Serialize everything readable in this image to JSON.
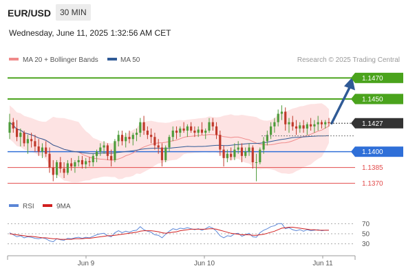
{
  "header": {
    "symbol": "EUR/USD",
    "timeframe": "30 MIN",
    "datetime": "Wednesday, June 11, 2025 1:32:56 AM CET"
  },
  "legend": {
    "ma20": "MA 20 + Bollinger Bands",
    "ma50": "MA 50",
    "credit": "Research © 2025 Trading Central"
  },
  "rsi_legend": {
    "rsi": "RSI",
    "ma": "9MA"
  },
  "colors": {
    "green_line": "#4aa31c",
    "blue_line": "#2f6fd8",
    "red_line": "#e24a4a",
    "ma20": "#f08a8a",
    "ma50": "#2f5a96",
    "band_fill": "#fde0e0",
    "bull_candle": "#4d9c3a",
    "bear_candle": "#c0392b",
    "arrow": "#2f5a96",
    "current_box": "#333333"
  },
  "chart_data": [
    {
      "type": "candlestick",
      "timeframe": "30 MIN",
      "ylim": [
        1.136,
        1.148
      ],
      "x_tick_labels": [
        "Jun 9",
        "Jun 10",
        "Jun 11"
      ],
      "current_price": 1.1427,
      "levels": [
        {
          "value": 1.147,
          "label": "1.1470",
          "kind": "resistance",
          "color": "#4aa31c"
        },
        {
          "value": 1.145,
          "label": "1.1450",
          "kind": "resistance",
          "color": "#4aa31c"
        },
        {
          "value": 1.14,
          "label": "1.1400",
          "kind": "pivot",
          "color": "#2f6fd8"
        },
        {
          "value": 1.1385,
          "label": "1.1385",
          "kind": "support",
          "color": "#e24a4a"
        },
        {
          "value": 1.137,
          "label": "1.1370",
          "kind": "support",
          "color": "#e24a4a"
        }
      ],
      "arrow_target": 1.147,
      "ohlc": [
        [
          1.1418,
          1.1436,
          1.1412,
          1.1428
        ],
        [
          1.1428,
          1.1432,
          1.1418,
          1.1422
        ],
        [
          1.1422,
          1.143,
          1.141,
          1.1414
        ],
        [
          1.1414,
          1.1422,
          1.1405,
          1.1418
        ],
        [
          1.1418,
          1.142,
          1.1405,
          1.1408
        ],
        [
          1.1408,
          1.1416,
          1.1398,
          1.1412
        ],
        [
          1.1412,
          1.1418,
          1.1404,
          1.141
        ],
        [
          1.141,
          1.1416,
          1.14,
          1.1405
        ],
        [
          1.1405,
          1.1412,
          1.1396,
          1.14
        ],
        [
          1.14,
          1.1408,
          1.1394,
          1.1404
        ],
        [
          1.1404,
          1.141,
          1.1395,
          1.1398
        ],
        [
          1.1398,
          1.1404,
          1.138,
          1.1385
        ],
        [
          1.1385,
          1.1392,
          1.1372,
          1.1378
        ],
        [
          1.1378,
          1.1392,
          1.1375,
          1.139
        ],
        [
          1.139,
          1.1395,
          1.138,
          1.1384
        ],
        [
          1.1384,
          1.139,
          1.1375,
          1.138
        ],
        [
          1.138,
          1.1392,
          1.1378,
          1.1389
        ],
        [
          1.1389,
          1.1394,
          1.1382,
          1.1386
        ],
        [
          1.1386,
          1.1392,
          1.138,
          1.139
        ],
        [
          1.139,
          1.1396,
          1.1386,
          1.1392
        ],
        [
          1.1392,
          1.1396,
          1.1384,
          1.1388
        ],
        [
          1.1388,
          1.1394,
          1.1384,
          1.1391
        ],
        [
          1.1391,
          1.1395,
          1.1386,
          1.139
        ],
        [
          1.139,
          1.1398,
          1.1386,
          1.1396
        ],
        [
          1.1396,
          1.1402,
          1.139,
          1.14
        ],
        [
          1.14,
          1.1408,
          1.1396,
          1.1404
        ],
        [
          1.1404,
          1.141,
          1.1398,
          1.1406
        ],
        [
          1.1406,
          1.1408,
          1.1392,
          1.1396
        ],
        [
          1.1396,
          1.1402,
          1.1386,
          1.1392
        ],
        [
          1.1392,
          1.1412,
          1.139,
          1.141
        ],
        [
          1.141,
          1.142,
          1.1405,
          1.1416
        ],
        [
          1.1416,
          1.142,
          1.1406,
          1.141
        ],
        [
          1.141,
          1.1418,
          1.1404,
          1.1414
        ],
        [
          1.1414,
          1.142,
          1.1408,
          1.1412
        ],
        [
          1.1412,
          1.1418,
          1.1406,
          1.1416
        ],
        [
          1.1416,
          1.1422,
          1.141,
          1.1418
        ],
        [
          1.1418,
          1.1432,
          1.1414,
          1.1428
        ],
        [
          1.1428,
          1.1434,
          1.1416,
          1.142
        ],
        [
          1.142,
          1.1424,
          1.1412,
          1.1416
        ],
        [
          1.1416,
          1.1422,
          1.1408,
          1.1414
        ],
        [
          1.1414,
          1.1418,
          1.1402,
          1.1406
        ],
        [
          1.1406,
          1.1412,
          1.1398,
          1.1404
        ],
        [
          1.1404,
          1.1408,
          1.1386,
          1.1392
        ],
        [
          1.1392,
          1.1406,
          1.139,
          1.1404
        ],
        [
          1.1404,
          1.1416,
          1.14,
          1.1414
        ],
        [
          1.1414,
          1.1424,
          1.141,
          1.142
        ],
        [
          1.142,
          1.1424,
          1.1412,
          1.1418
        ],
        [
          1.1418,
          1.1424,
          1.1414,
          1.1422
        ],
        [
          1.1422,
          1.1428,
          1.1418,
          1.142
        ],
        [
          1.142,
          1.1426,
          1.1414,
          1.1424
        ],
        [
          1.1424,
          1.1428,
          1.1418,
          1.142
        ],
        [
          1.142,
          1.1424,
          1.1414,
          1.1418
        ],
        [
          1.1418,
          1.1424,
          1.1414,
          1.1421
        ],
        [
          1.1421,
          1.1428,
          1.1416,
          1.1418
        ],
        [
          1.1418,
          1.1422,
          1.1412,
          1.142
        ],
        [
          1.142,
          1.1432,
          1.1418,
          1.1428
        ],
        [
          1.1428,
          1.1432,
          1.142,
          1.1424
        ],
        [
          1.1424,
          1.1428,
          1.1412,
          1.1416
        ],
        [
          1.1416,
          1.142,
          1.1396,
          1.1402
        ],
        [
          1.1402,
          1.1406,
          1.1386,
          1.1394
        ],
        [
          1.1394,
          1.1402,
          1.139,
          1.1398
        ],
        [
          1.1398,
          1.1404,
          1.1392,
          1.1395
        ],
        [
          1.1395,
          1.1408,
          1.1392,
          1.1402
        ],
        [
          1.1402,
          1.141,
          1.1398,
          1.1404
        ],
        [
          1.1404,
          1.1408,
          1.139,
          1.1396
        ],
        [
          1.1396,
          1.1404,
          1.1394,
          1.14
        ],
        [
          1.14,
          1.1408,
          1.1396,
          1.1404
        ],
        [
          1.1404,
          1.1406,
          1.1384,
          1.139
        ],
        [
          1.139,
          1.1398,
          1.1372,
          1.139
        ],
        [
          1.139,
          1.1404,
          1.1388,
          1.1402
        ],
        [
          1.1402,
          1.1414,
          1.1398,
          1.141
        ],
        [
          1.141,
          1.142,
          1.1406,
          1.1416
        ],
        [
          1.1416,
          1.1428,
          1.1412,
          1.1424
        ],
        [
          1.1424,
          1.1432,
          1.1418,
          1.1428
        ],
        [
          1.1428,
          1.144,
          1.1424,
          1.1436
        ],
        [
          1.1436,
          1.1444,
          1.143,
          1.1438
        ],
        [
          1.1438,
          1.1442,
          1.142,
          1.1426
        ],
        [
          1.1426,
          1.1432,
          1.1418,
          1.1428
        ],
        [
          1.1428,
          1.1434,
          1.142,
          1.1424
        ],
        [
          1.1424,
          1.143,
          1.1416,
          1.1422
        ],
        [
          1.1422,
          1.1428,
          1.1418,
          1.1425
        ],
        [
          1.1425,
          1.143,
          1.1418,
          1.1422
        ],
        [
          1.1422,
          1.1428,
          1.1416,
          1.1426
        ],
        [
          1.1426,
          1.1432,
          1.142,
          1.1424
        ],
        [
          1.1424,
          1.143,
          1.1418,
          1.1426
        ],
        [
          1.1426,
          1.1434,
          1.142,
          1.1428
        ],
        [
          1.1428,
          1.143,
          1.1422,
          1.1426
        ],
        [
          1.1426,
          1.143,
          1.1422,
          1.1428
        ],
        [
          1.1428,
          1.1432,
          1.1424,
          1.1427
        ]
      ],
      "rsi": {
        "levels": [
          30,
          50,
          70
        ],
        "rsi_values": [
          52,
          48,
          44,
          46,
          42,
          44,
          43,
          41,
          40,
          42,
          40,
          36,
          34,
          40,
          38,
          37,
          41,
          40,
          42,
          43,
          41,
          43,
          42,
          45,
          48,
          50,
          51,
          46,
          44,
          52,
          56,
          52,
          55,
          53,
          56,
          57,
          64,
          58,
          55,
          53,
          48,
          47,
          42,
          49,
          55,
          60,
          58,
          61,
          60,
          62,
          60,
          58,
          60,
          57,
          60,
          64,
          61,
          55,
          46,
          42,
          46,
          45,
          50,
          51,
          45,
          48,
          51,
          44,
          43,
          52,
          57,
          60,
          64,
          66,
          70,
          70,
          60,
          62,
          58,
          56,
          58,
          55,
          58,
          56,
          57,
          58,
          56,
          57,
          57
        ],
        "ma_values": [
          50,
          49,
          48,
          47,
          46,
          45,
          45,
          44,
          43,
          42,
          42,
          41,
          40,
          40,
          39,
          39,
          39,
          39,
          40,
          40,
          40,
          41,
          41,
          42,
          43,
          44,
          45,
          46,
          46,
          47,
          48,
          49,
          50,
          51,
          52,
          53,
          55,
          56,
          56,
          56,
          55,
          54,
          52,
          51,
          52,
          53,
          54,
          56,
          57,
          58,
          59,
          59,
          59,
          59,
          59,
          60,
          60,
          59,
          57,
          55,
          53,
          51,
          50,
          49,
          48,
          48,
          48,
          47,
          47,
          48,
          49,
          51,
          53,
          55,
          58,
          61,
          62,
          63,
          63,
          62,
          61,
          60,
          59,
          58,
          58,
          57,
          57,
          57,
          57
        ]
      }
    }
  ]
}
